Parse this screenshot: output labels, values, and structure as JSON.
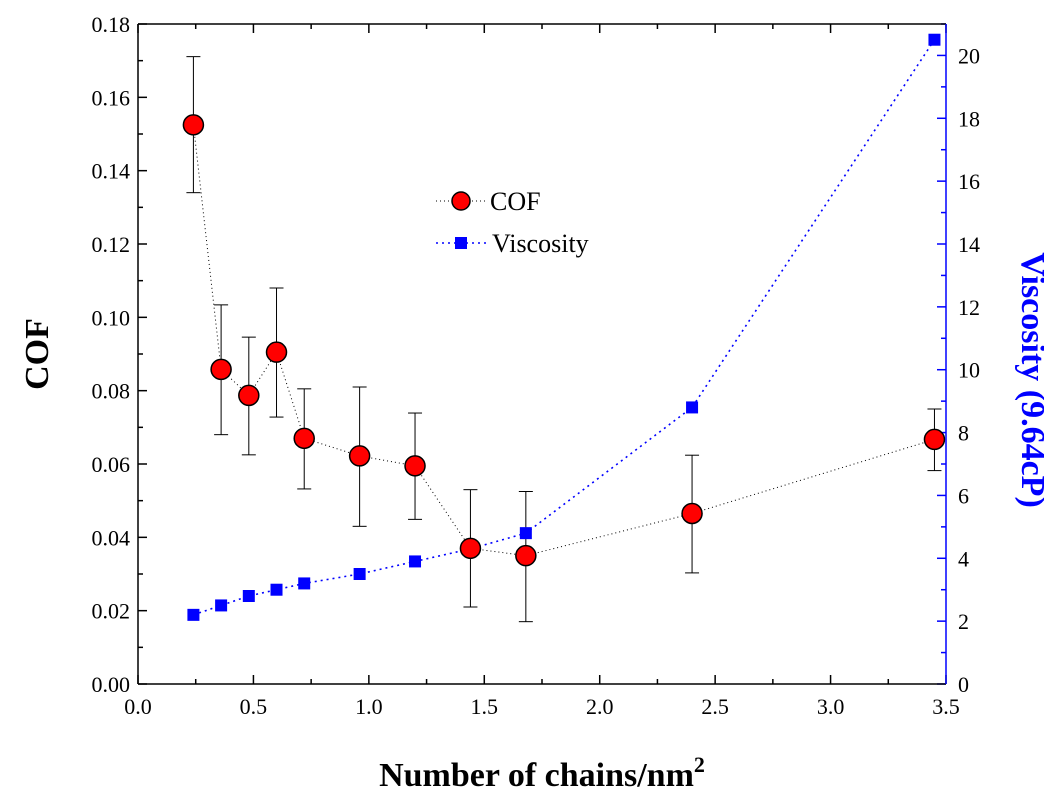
{
  "chart_data": {
    "type": "scatter",
    "xlabel": "Number of chains/nm",
    "xlabel_superscript": "2",
    "ylabel_left": "COF",
    "ylabel_right": "Viscosity (9.64cP)",
    "xlim": [
      0.0,
      3.5
    ],
    "ylim_left": [
      0.0,
      0.18
    ],
    "ylim_right": [
      0,
      21
    ],
    "x_ticks": [
      "0.0",
      "0.5",
      "1.0",
      "1.5",
      "2.0",
      "2.5",
      "3.0",
      "3.5"
    ],
    "y_left_ticks": [
      "0.00",
      "0.02",
      "0.04",
      "0.06",
      "0.08",
      "0.10",
      "0.12",
      "0.14",
      "0.16",
      "0.18"
    ],
    "y_right_ticks": [
      "0",
      "2",
      "4",
      "6",
      "8",
      "10",
      "12",
      "14",
      "16",
      "18",
      "20"
    ],
    "grid": false,
    "legend_position": "top-center",
    "series": [
      {
        "name": "COF",
        "axis": "left",
        "color": "#ff0000",
        "line_color": "#000000",
        "marker": "circle",
        "line_style": "dotted",
        "x": [
          0.24,
          0.36,
          0.48,
          0.6,
          0.72,
          0.96,
          1.2,
          1.44,
          1.68,
          2.4,
          3.45
        ],
        "y": [
          0.1525,
          0.0858,
          0.0787,
          0.0905,
          0.067,
          0.0622,
          0.0595,
          0.037,
          0.035,
          0.0465,
          0.0667
        ],
        "err_upper": [
          0.1711,
          0.1034,
          0.0946,
          0.108,
          0.0805,
          0.081,
          0.0739,
          0.053,
          0.0525,
          0.0624,
          0.075
        ],
        "err_lower": [
          0.134,
          0.068,
          0.0625,
          0.0728,
          0.0532,
          0.043,
          0.0449,
          0.021,
          0.017,
          0.0303,
          0.0582
        ]
      },
      {
        "name": "Viscosity",
        "axis": "right",
        "color": "#0000ff",
        "marker": "square",
        "line_style": "dotted",
        "x": [
          0.24,
          0.36,
          0.48,
          0.6,
          0.72,
          0.96,
          1.2,
          1.44,
          1.68,
          2.4,
          3.45
        ],
        "y": [
          2.2,
          2.5,
          2.8,
          3.0,
          3.2,
          3.5,
          3.9,
          4.3,
          4.8,
          8.8,
          20.5
        ]
      }
    ]
  }
}
